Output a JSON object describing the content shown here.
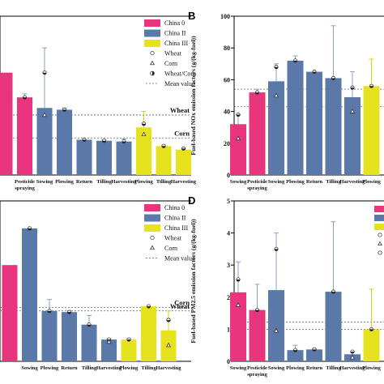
{
  "colors": {
    "china0": "#e8357d",
    "china2": "#5a78a8",
    "china3": "#e6e31e",
    "error": "#8aa0c8",
    "refline": "#666666"
  },
  "chart_data": [
    {
      "panel": "",
      "type": "bar",
      "ylabel": "",
      "categories": [
        "",
        "Pesticide spraying",
        "Sowing",
        "Plowing",
        "Return",
        "Tilling",
        "Harvesting",
        "Plowing",
        "Tilling",
        "Harvesting"
      ],
      "groups": [
        "China 0",
        "China 0",
        "China II",
        "China II",
        "China II",
        "China II",
        "China II",
        "China III",
        "China III",
        "China III"
      ],
      "values": [
        2.9,
        2.2,
        1.9,
        1.85,
        1.0,
        0.97,
        0.95,
        1.35,
        0.82,
        0.72
      ],
      "err_top": [
        null,
        2.3,
        3.6,
        1.9,
        1.0,
        1.0,
        1.02,
        1.8,
        0.85,
        0.75
      ],
      "wheat": [
        null,
        2.2,
        2.9,
        1.85,
        1.0,
        0.97,
        0.95,
        1.45,
        0.82,
        0.75
      ],
      "corn": [
        null,
        null,
        1.7,
        null,
        null,
        null,
        null,
        1.15,
        null,
        null
      ],
      "ylim": [
        0,
        4.5
      ],
      "ref_lines": [
        {
          "label": "Wheat",
          "value": 1.7
        },
        {
          "label": "Corn",
          "value": 1.05
        }
      ],
      "legend": [
        "China 0",
        "China II",
        "China III",
        "Wheat",
        "Corn",
        "Wheat/Corn",
        "Mean value"
      ]
    },
    {
      "panel": "B",
      "type": "bar",
      "ylabel": "Fuel-based NOx emission factors (g/(kg-fuel))",
      "categories": [
        "Sowing",
        "Pesticide spraying",
        "Sowing",
        "Plowing",
        "Return",
        "Tilling",
        "Harvesting",
        "Plowing"
      ],
      "groups": [
        "China 0",
        "China 0",
        "China II",
        "China II",
        "China II",
        "China II",
        "China II",
        "China III"
      ],
      "values": [
        32,
        52,
        59,
        72,
        65,
        61,
        49,
        56
      ],
      "err_top": [
        38,
        54,
        70,
        75,
        65,
        94,
        65,
        73
      ],
      "wheat": [
        38,
        52,
        68,
        72,
        65,
        61,
        55,
        56
      ],
      "corn": [
        23,
        null,
        50,
        null,
        null,
        null,
        40,
        null
      ],
      "ylim": [
        0,
        100
      ],
      "yticks": [
        0,
        20,
        40,
        60,
        80,
        100
      ],
      "ref_lines": [
        {
          "value": 54
        },
        {
          "value": 43
        }
      ]
    },
    {
      "panel": "",
      "type": "bar",
      "ylabel": "",
      "categories": [
        "",
        "Sowing",
        "Plowing",
        "Return",
        "Tilling",
        "Harvesting",
        "Plowing",
        "Tilling",
        "Harvesting"
      ],
      "groups": [
        "China 0",
        "China II",
        "China II",
        "China II",
        "China II",
        "China II",
        "China III",
        "China III",
        "China III"
      ],
      "values": [
        4.2,
        5.8,
        2.2,
        2.15,
        1.6,
        0.95,
        0.95,
        2.4,
        1.35
      ],
      "err_top": [
        null,
        5.8,
        2.7,
        2.2,
        2.0,
        1.0,
        1.0,
        2.4,
        2.2
      ],
      "wheat": [
        null,
        5.8,
        2.2,
        2.15,
        1.6,
        0.95,
        0.95,
        2.4,
        1.8
      ],
      "corn": [
        null,
        null,
        null,
        null,
        null,
        0.85,
        null,
        null,
        0.7
      ],
      "ylim": [
        0,
        7
      ],
      "ref_lines": [
        {
          "label": "Corn",
          "value": 2.35
        },
        {
          "label": "Wheat",
          "value": 2.2
        }
      ],
      "legend": [
        "China 0",
        "China II",
        "China III",
        "Wheat",
        "Corn",
        "Mean value"
      ]
    },
    {
      "panel": "D",
      "type": "bar",
      "ylabel": "Fuel-based PM2.5 emission factors (g/(kg-fuel))",
      "categories": [
        "Sowing",
        "Pesticide spraying",
        "Sowing",
        "Plowing",
        "Return",
        "Tilling",
        "Harvesting",
        "Plowing"
      ],
      "groups": [
        "China 0",
        "China 0",
        "China II",
        "China II",
        "China II",
        "China II",
        "China II",
        "China III"
      ],
      "values": [
        2.15,
        1.6,
        2.22,
        0.35,
        0.37,
        2.17,
        0.22,
        1.0
      ],
      "err_top": [
        3.1,
        2.4,
        4.0,
        0.5,
        0.4,
        4.35,
        0.3,
        2.25
      ],
      "wheat": [
        2.55,
        1.6,
        3.5,
        0.35,
        0.37,
        2.17,
        0.3,
        1.0
      ],
      "corn": [
        1.75,
        null,
        0.95,
        null,
        null,
        null,
        0.12,
        null
      ],
      "ylim": [
        0,
        5
      ],
      "yticks": [
        0,
        1,
        2,
        3,
        4,
        5
      ],
      "ref_lines": [
        {
          "value": 1.22
        },
        {
          "value": 1.0
        }
      ]
    }
  ]
}
